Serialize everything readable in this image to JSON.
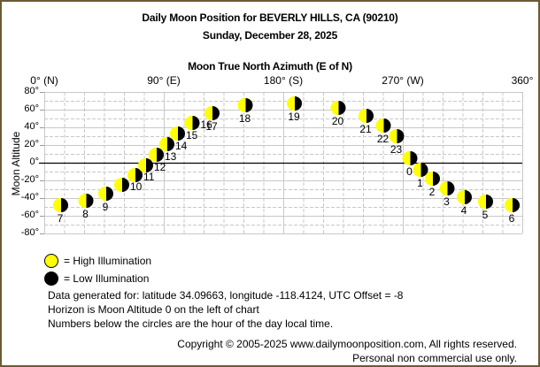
{
  "header": {
    "title": "Daily Moon Position for BEVERLY HILLS, CA (90210)",
    "date": "Sunday, December 28, 2025",
    "x_axis_title": "Moon True North Azimuth (E of N)"
  },
  "axes": {
    "x_ticks": [
      {
        "label": "0° (N)",
        "value": 0
      },
      {
        "label": "90° (E)",
        "value": 90
      },
      {
        "label": "180° (S)",
        "value": 180
      },
      {
        "label": "270° (W)",
        "value": 270
      },
      {
        "label": "360°",
        "value": 360
      }
    ],
    "y_ticks": [
      {
        "label": "80°",
        "value": 80
      },
      {
        "label": "60°",
        "value": 60
      },
      {
        "label": "40°",
        "value": 40
      },
      {
        "label": "20°",
        "value": 20
      },
      {
        "label": "0°",
        "value": 0
      },
      {
        "label": "-20°",
        "value": -20
      },
      {
        "label": "-40°",
        "value": -40
      },
      {
        "label": "-60°",
        "value": -60
      },
      {
        "label": "-80°",
        "value": -80
      }
    ],
    "y_title": "Moon Altitude"
  },
  "legend": {
    "high": "= High Illumination",
    "low": "= Low Illumination"
  },
  "info": {
    "line1": "Data generated for: latitude 34.09663, longitude -118.4124, UTC Offset = -8",
    "line2": "Horizon is Moon Altitude 0 on the left of chart",
    "line3": "Numbers below the circles are the hour of the day local time."
  },
  "footer": {
    "copyright": "Copyright © 2005-2025 www.dailymoonposition.com, All rights reserved.",
    "usage": "Personal non commercial use only."
  },
  "colors": {
    "border": "#6b5a35",
    "moon_lit": "#ffff00",
    "moon_dark": "#000000",
    "grid": "#c8c8c8",
    "horizon": "#000000"
  },
  "chart_data": {
    "type": "scatter",
    "title": "Daily Moon Position for BEVERLY HILLS, CA (90210)",
    "subtitle": "Sunday, December 28, 2025",
    "xlabel": "Moon True North Azimuth (E of N)",
    "ylabel": "Moon Altitude",
    "xlim": [
      0,
      360
    ],
    "ylim": [
      -80,
      80
    ],
    "x_tick_labels": [
      "0° (N)",
      "90° (E)",
      "180° (S)",
      "270° (W)",
      "360°"
    ],
    "y_tick_labels": [
      "80°",
      "60°",
      "40°",
      "20°",
      "0°",
      "-20°",
      "-40°",
      "-60°",
      "-80°"
    ],
    "grid": true,
    "legend": [
      "High Illumination",
      "Low Illumination"
    ],
    "points": [
      {
        "hour": 7,
        "azimuth": 12,
        "altitude": -48
      },
      {
        "hour": 8,
        "azimuth": 31,
        "altitude": -43
      },
      {
        "hour": 9,
        "azimuth": 46,
        "altitude": -35
      },
      {
        "hour": 10,
        "azimuth": 58,
        "altitude": -25
      },
      {
        "hour": 11,
        "azimuth": 68,
        "altitude": -14
      },
      {
        "hour": 12,
        "azimuth": 76,
        "altitude": -3
      },
      {
        "hour": 13,
        "azimuth": 84,
        "altitude": 9
      },
      {
        "hour": 14,
        "azimuth": 92,
        "altitude": 21
      },
      {
        "hour": 15,
        "azimuth": 100,
        "altitude": 33
      },
      {
        "hour": 16,
        "azimuth": 111,
        "altitude": 45
      },
      {
        "hour": 17,
        "azimuth": 126,
        "altitude": 56
      },
      {
        "hour": 18,
        "azimuth": 151,
        "altitude": 65
      },
      {
        "hour": 19,
        "azimuth": 188,
        "altitude": 67
      },
      {
        "hour": 20,
        "azimuth": 221,
        "altitude": 62
      },
      {
        "hour": 21,
        "azimuth": 242,
        "altitude": 53
      },
      {
        "hour": 22,
        "azimuth": 255,
        "altitude": 42
      },
      {
        "hour": 23,
        "azimuth": 265,
        "altitude": 30
      },
      {
        "hour": 0,
        "azimuth": 275,
        "altitude": 5
      },
      {
        "hour": 1,
        "azimuth": 283,
        "altitude": -8
      },
      {
        "hour": 2,
        "azimuth": 292,
        "altitude": -18
      },
      {
        "hour": 3,
        "azimuth": 303,
        "altitude": -29
      },
      {
        "hour": 4,
        "azimuth": 316,
        "altitude": -39
      },
      {
        "hour": 5,
        "azimuth": 332,
        "altitude": -44
      },
      {
        "hour": 6,
        "azimuth": 352,
        "altitude": -48
      }
    ]
  }
}
